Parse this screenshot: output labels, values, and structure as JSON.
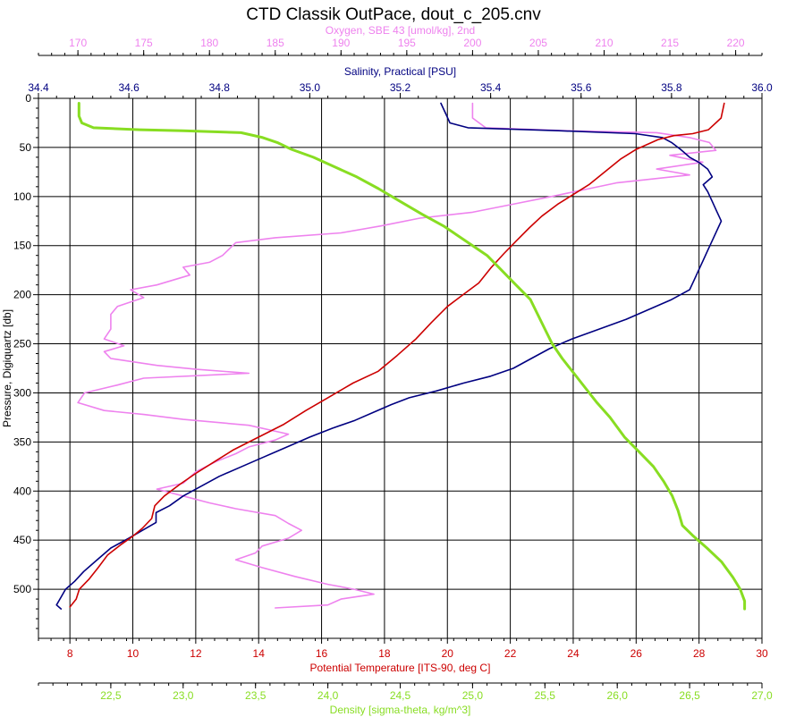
{
  "chart_data": {
    "type": "line",
    "title": "CTD Classik OutPace, dout_c_205.cnv",
    "grid": true,
    "y_axis": {
      "label": "Pressure, Digiquartz [db]",
      "range": [
        550,
        0
      ],
      "ticks": [
        0,
        50,
        100,
        150,
        200,
        250,
        300,
        350,
        400,
        450,
        500
      ],
      "tick_labels": [
        "0",
        "50",
        "100",
        "150",
        "200",
        "250",
        "300",
        "350",
        "400",
        "450",
        "500"
      ],
      "color": "#000000"
    },
    "x_axes": [
      {
        "id": "oxygen",
        "position": "top",
        "label": "Oxygen, SBE 43 [umol/kg], 2nd",
        "color": "#ee82ee",
        "range": [
          167,
          222
        ],
        "ticks": [
          170,
          175,
          180,
          185,
          190,
          195,
          200,
          205,
          210,
          215,
          220
        ],
        "tick_labels": [
          "170",
          "175",
          "180",
          "185",
          "190",
          "195",
          "200",
          "205",
          "210",
          "215",
          "220"
        ]
      },
      {
        "id": "salinity",
        "position": "top",
        "label": "Salinity, Practical [PSU]",
        "color": "#000080",
        "range": [
          34.4,
          36.0
        ],
        "ticks": [
          34.4,
          34.6,
          34.8,
          35.0,
          35.2,
          35.4,
          35.6,
          35.8,
          36.0
        ],
        "tick_labels": [
          "34.4",
          "34.6",
          "34.8",
          "35.0",
          "35.2",
          "35.4",
          "35.6",
          "35.8",
          "36.0"
        ]
      },
      {
        "id": "temperature",
        "position": "bottom",
        "label": "Potential Temperature [ITS-90, deg C]",
        "color": "#cc0000",
        "range": [
          7,
          30
        ],
        "ticks": [
          8,
          10,
          12,
          14,
          16,
          18,
          20,
          22,
          24,
          26,
          28,
          30
        ],
        "tick_labels": [
          "8",
          "10",
          "12",
          "14",
          "16",
          "18",
          "20",
          "22",
          "24",
          "26",
          "28",
          "30"
        ]
      },
      {
        "id": "density",
        "position": "bottom",
        "label": "Density [sigma-theta, kg/m^3]",
        "color": "#88dd22",
        "range": [
          22.0,
          27.0
        ],
        "ticks": [
          22.5,
          23.0,
          23.5,
          24.0,
          24.5,
          25.0,
          25.5,
          26.0,
          26.5,
          27.0
        ],
        "tick_labels": [
          "22,5",
          "23,0",
          "23,5",
          "24,0",
          "24,5",
          "25,0",
          "25,5",
          "26,0",
          "26,5",
          "27,0"
        ]
      }
    ],
    "series": [
      {
        "axis": "oxygen",
        "color": "#ee82ee",
        "points": [
          [
            200.0,
            5
          ],
          [
            200.0,
            20
          ],
          [
            201.0,
            30
          ],
          [
            207.0,
            33
          ],
          [
            214.0,
            35
          ],
          [
            216.5,
            40
          ],
          [
            218.0,
            45
          ],
          [
            218.5,
            53
          ],
          [
            215.0,
            58
          ],
          [
            217.5,
            65
          ],
          [
            214.0,
            72
          ],
          [
            216.5,
            78
          ],
          [
            211.0,
            86
          ],
          [
            208.5,
            93
          ],
          [
            206.0,
            100
          ],
          [
            203.0,
            108
          ],
          [
            200.0,
            116
          ],
          [
            196.0,
            122
          ],
          [
            193.0,
            130
          ],
          [
            190.0,
            137
          ],
          [
            185.0,
            142
          ],
          [
            182.0,
            147
          ],
          [
            181.0,
            160
          ],
          [
            180.0,
            167
          ],
          [
            178.0,
            172
          ],
          [
            178.5,
            180
          ],
          [
            176.0,
            190
          ],
          [
            174.0,
            195
          ],
          [
            175.0,
            203
          ],
          [
            173.0,
            212
          ],
          [
            172.5,
            220
          ],
          [
            172.5,
            235
          ],
          [
            172.0,
            245
          ],
          [
            173.5,
            252
          ],
          [
            172.0,
            258
          ],
          [
            172.5,
            265
          ],
          [
            176.0,
            272
          ],
          [
            179.0,
            276
          ],
          [
            183.0,
            280
          ],
          [
            175.0,
            285
          ],
          [
            173.0,
            292
          ],
          [
            170.5,
            300
          ],
          [
            170.0,
            310
          ],
          [
            172.0,
            318
          ],
          [
            175.0,
            322
          ],
          [
            178.0,
            327
          ],
          [
            183.0,
            333
          ],
          [
            186.0,
            342
          ],
          [
            185.0,
            348
          ],
          [
            183.0,
            355
          ],
          [
            182.0,
            362
          ],
          [
            180.5,
            370
          ],
          [
            179.0,
            380
          ],
          [
            178.0,
            392
          ],
          [
            176.0,
            398
          ],
          [
            178.0,
            405
          ],
          [
            180.0,
            412
          ],
          [
            182.0,
            418
          ],
          [
            185.0,
            425
          ],
          [
            186.0,
            433
          ],
          [
            187.0,
            440
          ],
          [
            186.0,
            448
          ],
          [
            184.0,
            456
          ],
          [
            183.5,
            463
          ],
          [
            182.0,
            470
          ],
          [
            184.0,
            478
          ],
          [
            186.5,
            487
          ],
          [
            189.0,
            495
          ],
          [
            191.0,
            500
          ],
          [
            192.5,
            505
          ],
          [
            190.0,
            510
          ],
          [
            189.0,
            516
          ],
          [
            185.0,
            519
          ]
        ]
      },
      {
        "axis": "salinity",
        "color": "#000080",
        "points": [
          [
            35.29,
            5
          ],
          [
            35.3,
            15
          ],
          [
            35.31,
            25
          ],
          [
            35.35,
            30
          ],
          [
            35.55,
            33
          ],
          [
            35.72,
            36
          ],
          [
            35.78,
            40
          ],
          [
            35.8,
            45
          ],
          [
            35.82,
            52
          ],
          [
            35.84,
            60
          ],
          [
            35.86,
            65
          ],
          [
            35.88,
            72
          ],
          [
            35.89,
            80
          ],
          [
            35.87,
            88
          ],
          [
            35.88,
            95
          ],
          [
            35.89,
            105
          ],
          [
            35.9,
            115
          ],
          [
            35.91,
            125
          ],
          [
            35.9,
            135
          ],
          [
            35.89,
            145
          ],
          [
            35.88,
            155
          ],
          [
            35.87,
            165
          ],
          [
            35.86,
            175
          ],
          [
            35.85,
            185
          ],
          [
            35.84,
            195
          ],
          [
            35.8,
            205
          ],
          [
            35.75,
            215
          ],
          [
            35.7,
            225
          ],
          [
            35.64,
            235
          ],
          [
            35.58,
            245
          ],
          [
            35.53,
            255
          ],
          [
            35.49,
            265
          ],
          [
            35.45,
            275
          ],
          [
            35.4,
            283
          ],
          [
            35.34,
            290
          ],
          [
            35.28,
            298
          ],
          [
            35.22,
            305
          ],
          [
            35.18,
            312
          ],
          [
            35.14,
            320
          ],
          [
            35.1,
            328
          ],
          [
            35.05,
            336
          ],
          [
            35.0,
            345
          ],
          [
            34.95,
            355
          ],
          [
            34.9,
            365
          ],
          [
            34.85,
            375
          ],
          [
            34.8,
            385
          ],
          [
            34.76,
            395
          ],
          [
            34.72,
            405
          ],
          [
            34.69,
            415
          ],
          [
            34.66,
            422
          ],
          [
            34.66,
            432
          ],
          [
            34.63,
            440
          ],
          [
            34.6,
            448
          ],
          [
            34.56,
            458
          ],
          [
            34.53,
            470
          ],
          [
            34.5,
            482
          ],
          [
            34.48,
            492
          ],
          [
            34.46,
            500
          ],
          [
            34.45,
            508
          ],
          [
            34.44,
            516
          ],
          [
            34.45,
            520
          ]
        ]
      },
      {
        "axis": "temperature",
        "color": "#cc0000",
        "points": [
          [
            28.8,
            5
          ],
          [
            28.7,
            20
          ],
          [
            28.3,
            32
          ],
          [
            27.8,
            36
          ],
          [
            27.2,
            38
          ],
          [
            26.7,
            42
          ],
          [
            26.0,
            52
          ],
          [
            25.5,
            62
          ],
          [
            25.0,
            75
          ],
          [
            24.5,
            88
          ],
          [
            24.0,
            98
          ],
          [
            23.5,
            108
          ],
          [
            23.0,
            120
          ],
          [
            22.6,
            132
          ],
          [
            22.2,
            145
          ],
          [
            21.8,
            158
          ],
          [
            21.4,
            172
          ],
          [
            21.0,
            188
          ],
          [
            20.5,
            200
          ],
          [
            20.0,
            212
          ],
          [
            19.5,
            228
          ],
          [
            19.0,
            245
          ],
          [
            18.4,
            262
          ],
          [
            17.8,
            278
          ],
          [
            17.0,
            290
          ],
          [
            16.2,
            305
          ],
          [
            15.5,
            318
          ],
          [
            14.8,
            332
          ],
          [
            14.0,
            345
          ],
          [
            13.2,
            358
          ],
          [
            12.6,
            370
          ],
          [
            12.0,
            382
          ],
          [
            11.5,
            393
          ],
          [
            11.0,
            405
          ],
          [
            10.7,
            415
          ],
          [
            10.6,
            428
          ],
          [
            10.3,
            438
          ],
          [
            10.0,
            446
          ],
          [
            9.6,
            455
          ],
          [
            9.2,
            465
          ],
          [
            8.9,
            478
          ],
          [
            8.6,
            490
          ],
          [
            8.3,
            500
          ],
          [
            8.2,
            510
          ],
          [
            8.0,
            518
          ]
        ]
      },
      {
        "axis": "density",
        "color": "#88dd22",
        "points": [
          [
            22.28,
            5
          ],
          [
            22.28,
            18
          ],
          [
            22.3,
            25
          ],
          [
            22.38,
            30
          ],
          [
            22.7,
            32
          ],
          [
            23.0,
            33
          ],
          [
            23.4,
            35
          ],
          [
            23.55,
            40
          ],
          [
            23.65,
            45
          ],
          [
            23.75,
            52
          ],
          [
            23.9,
            60
          ],
          [
            24.05,
            70
          ],
          [
            24.2,
            80
          ],
          [
            24.35,
            92
          ],
          [
            24.5,
            105
          ],
          [
            24.65,
            118
          ],
          [
            24.8,
            130
          ],
          [
            24.95,
            145
          ],
          [
            25.1,
            160
          ],
          [
            25.2,
            175
          ],
          [
            25.3,
            190
          ],
          [
            25.4,
            205
          ],
          [
            25.45,
            220
          ],
          [
            25.5,
            235
          ],
          [
            25.55,
            250
          ],
          [
            25.62,
            265
          ],
          [
            25.7,
            280
          ],
          [
            25.78,
            295
          ],
          [
            25.86,
            310
          ],
          [
            25.95,
            325
          ],
          [
            26.05,
            345
          ],
          [
            26.15,
            360
          ],
          [
            26.25,
            375
          ],
          [
            26.32,
            390
          ],
          [
            26.38,
            405
          ],
          [
            26.42,
            420
          ],
          [
            26.45,
            435
          ],
          [
            26.52,
            445
          ],
          [
            26.62,
            458
          ],
          [
            26.72,
            472
          ],
          [
            26.8,
            488
          ],
          [
            26.85,
            500
          ],
          [
            26.88,
            512
          ],
          [
            26.88,
            520
          ]
        ]
      }
    ]
  }
}
